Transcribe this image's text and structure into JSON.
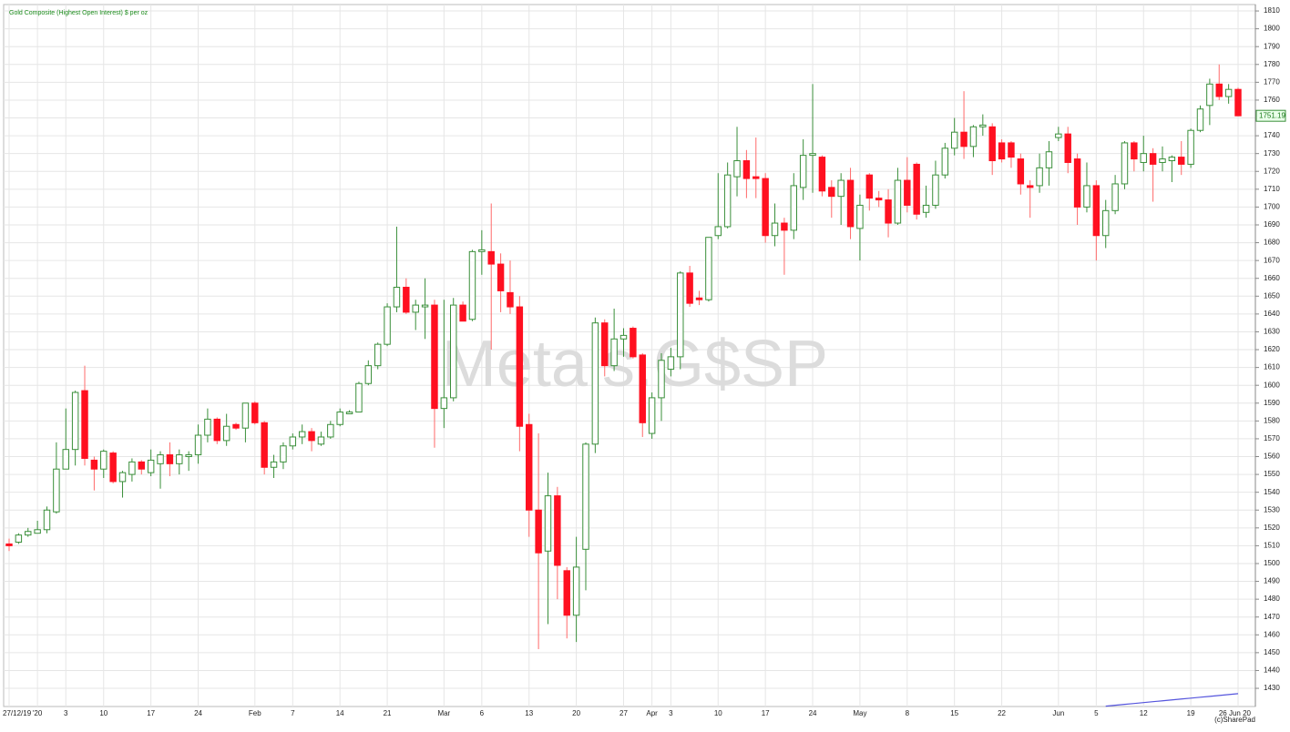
{
  "chart_data": {
    "type": "candlestick",
    "title": "Gold Composite (Highest Open Interest) $ per oz",
    "watermark": "Metals.G$SP",
    "credit": "(c)SharePad",
    "up_color": "#3a8f3a",
    "down_color": "#ff1020",
    "grid": true,
    "ylim": [
      1419.8,
      1813.6
    ],
    "yticks": [
      1430,
      1440,
      1450,
      1460,
      1470,
      1480,
      1490,
      1500,
      1510,
      1520,
      1530,
      1540,
      1550,
      1560,
      1570,
      1580,
      1590,
      1600,
      1610,
      1620,
      1630,
      1640,
      1650,
      1660,
      1670,
      1680,
      1690,
      1700,
      1710,
      1720,
      1730,
      1740,
      1750,
      1760,
      1770,
      1780,
      1790,
      1800,
      1810
    ],
    "categories": [
      "27/12/19",
      null,
      null,
      "'20",
      null,
      null,
      "3",
      null,
      null,
      null,
      "10",
      null,
      null,
      null,
      null,
      "17",
      null,
      null,
      null,
      null,
      "24",
      null,
      null,
      null,
      null,
      null,
      "Feb",
      null,
      null,
      null,
      "7",
      null,
      null,
      null,
      null,
      "14",
      null,
      null,
      null,
      null,
      "21",
      null,
      null,
      null,
      null,
      null,
      "Mar",
      null,
      null,
      null,
      "6",
      null,
      null,
      null,
      null,
      "13",
      null,
      null,
      null,
      null,
      "20",
      null,
      null,
      null,
      null,
      "27",
      null,
      null,
      "Apr",
      null,
      "3",
      null,
      null,
      null,
      null,
      "10",
      null,
      null,
      null,
      null,
      "17",
      null,
      null,
      null,
      null,
      "24",
      null,
      null,
      null,
      null,
      "May",
      null,
      null,
      null,
      null,
      "8",
      null,
      null,
      null,
      null,
      "15",
      null,
      null,
      null,
      null,
      "22",
      null,
      null,
      null,
      null,
      null,
      "Jun",
      null,
      null,
      null,
      "5",
      null,
      null,
      null,
      null,
      "12",
      null,
      null,
      null,
      null,
      "19",
      null,
      null,
      null,
      null,
      "26 Jun 20"
    ],
    "open": [
      1511,
      1512,
      1516,
      1517,
      1519,
      1529,
      1553,
      1564,
      1597,
      1558,
      1553,
      1562,
      1546,
      1550,
      1557,
      1551,
      1556,
      1561,
      1556,
      1560,
      1561,
      1572,
      1581,
      1569,
      1578,
      1576,
      1590,
      1579,
      1554,
      1557,
      1566,
      1571,
      1574,
      1567,
      1571,
      1578,
      1584,
      1585,
      1601,
      1611,
      1623,
      1644,
      1655,
      1641,
      1644,
      1645,
      1587,
      1593,
      1645,
      1637,
      1675,
      1675,
      1668,
      1652,
      1644,
      1578,
      1530,
      1507,
      1538,
      1496,
      1471,
      1508,
      1567,
      1635,
      1611,
      1626,
      1632,
      1617,
      1573,
      1593,
      1609,
      1616,
      1663,
      1649,
      1648,
      1684,
      1689,
      1717,
      1726,
      1717,
      1716,
      1684,
      1691,
      1687,
      1711,
      1729,
      1728,
      1711,
      1706,
      1715,
      1688,
      1718,
      1705,
      1704,
      1691,
      1715,
      1724,
      1697,
      1701,
      1718,
      1733,
      1742,
      1734,
      1745,
      1745,
      1736,
      1736,
      1727,
      1712,
      1712,
      1722,
      1739,
      1741,
      1727,
      1700,
      1712,
      1684,
      1698,
      1713,
      1736,
      1725,
      1730,
      1725,
      1726,
      1728,
      1724,
      1743,
      1757,
      1769,
      1762,
      1766
    ],
    "high": [
      1514,
      1517,
      1520,
      1524,
      1532,
      1568,
      1587,
      1597,
      1611,
      1560,
      1564,
      1563,
      1552,
      1559,
      1558,
      1564,
      1563,
      1568,
      1564,
      1563,
      1578,
      1587,
      1582,
      1584,
      1579,
      1590,
      1591,
      1580,
      1561,
      1568,
      1573,
      1578,
      1576,
      1574,
      1580,
      1587,
      1586,
      1602,
      1614,
      1624,
      1646,
      1689,
      1660,
      1648,
      1660,
      1648,
      1648,
      1649,
      1647,
      1676,
      1687,
      1702,
      1674,
      1670,
      1650,
      1584,
      1573,
      1551,
      1543,
      1498,
      1515,
      1568,
      1638,
      1637,
      1643,
      1632,
      1633,
      1618,
      1596,
      1618,
      1621,
      1664,
      1667,
      1653,
      1683,
      1719,
      1725,
      1745,
      1732,
      1739,
      1719,
      1702,
      1694,
      1719,
      1738,
      1769,
      1729,
      1715,
      1719,
      1722,
      1707,
      1719,
      1709,
      1710,
      1722,
      1728,
      1725,
      1712,
      1726,
      1736,
      1750,
      1765,
      1746,
      1752,
      1747,
      1738,
      1737,
      1730,
      1715,
      1730,
      1737,
      1745,
      1745,
      1730,
      1725,
      1715,
      1704,
      1718,
      1737,
      1737,
      1740,
      1733,
      1734,
      1729,
      1737,
      1744,
      1757,
      1772,
      1780,
      1769,
      1767
    ],
    "low": [
      1507,
      1511,
      1515,
      1517,
      1517,
      1528,
      1553,
      1555,
      1555,
      1541,
      1548,
      1545,
      1537,
      1546,
      1550,
      1549,
      1542,
      1549,
      1550,
      1552,
      1556,
      1568,
      1567,
      1566,
      1575,
      1568,
      1578,
      1550,
      1548,
      1553,
      1564,
      1567,
      1563,
      1566,
      1570,
      1577,
      1584,
      1585,
      1600,
      1609,
      1622,
      1641,
      1640,
      1631,
      1626,
      1565,
      1576,
      1591,
      1636,
      1636,
      1662,
      1620,
      1641,
      1640,
      1563,
      1515,
      1452,
      1466,
      1480,
      1458,
      1456,
      1485,
      1562,
      1605,
      1608,
      1616,
      1615,
      1571,
      1570,
      1580,
      1605,
      1609,
      1644,
      1645,
      1647,
      1682,
      1688,
      1706,
      1705,
      1705,
      1680,
      1678,
      1662,
      1682,
      1704,
      1708,
      1706,
      1694,
      1690,
      1682,
      1670,
      1698,
      1700,
      1683,
      1690,
      1697,
      1693,
      1694,
      1699,
      1716,
      1729,
      1727,
      1728,
      1740,
      1718,
      1725,
      1722,
      1707,
      1694,
      1708,
      1712,
      1737,
      1719,
      1690,
      1697,
      1670,
      1677,
      1696,
      1710,
      1720,
      1720,
      1703,
      1720,
      1714,
      1718,
      1722,
      1742,
      1746,
      1760,
      1758,
      1751
    ],
    "close": [
      1510,
      1516,
      1518,
      1519,
      1530,
      1553,
      1564,
      1596,
      1559,
      1553,
      1563,
      1546,
      1551,
      1557,
      1553,
      1558,
      1561,
      1556,
      1561,
      1561,
      1572,
      1581,
      1569,
      1577,
      1576,
      1590,
      1579,
      1554,
      1557,
      1566,
      1571,
      1574,
      1569,
      1571,
      1578,
      1585,
      1585,
      1601,
      1611,
      1623,
      1644,
      1655,
      1641,
      1645,
      1645,
      1587,
      1593,
      1645,
      1636,
      1675,
      1676,
      1668,
      1653,
      1644,
      1577,
      1530,
      1506,
      1538,
      1499,
      1471,
      1498,
      1567,
      1635,
      1611,
      1626,
      1628,
      1616,
      1579,
      1593,
      1614,
      1616,
      1663,
      1646,
      1648,
      1683,
      1689,
      1718,
      1726,
      1716,
      1716,
      1684,
      1691,
      1687,
      1712,
      1729,
      1730,
      1709,
      1706,
      1715,
      1689,
      1701,
      1705,
      1704,
      1691,
      1715,
      1701,
      1696,
      1701,
      1718,
      1733,
      1742,
      1734,
      1745,
      1746,
      1726,
      1727,
      1728,
      1713,
      1711,
      1722,
      1731,
      1741,
      1725,
      1700,
      1712,
      1684,
      1698,
      1713,
      1736,
      1727,
      1730,
      1724,
      1727,
      1728,
      1724,
      1743,
      1755,
      1769,
      1762,
      1766,
      1751.19
    ],
    "overlay": {
      "color": "#5555dd",
      "values": [
        null,
        null,
        null,
        null,
        null,
        null,
        null,
        null,
        null,
        null,
        null,
        null,
        null,
        null,
        null,
        null,
        null,
        null,
        null,
        null,
        null,
        null,
        null,
        null,
        null,
        null,
        null,
        null,
        null,
        null,
        null,
        null,
        null,
        null,
        null,
        null,
        null,
        null,
        null,
        null,
        null,
        null,
        null,
        null,
        null,
        null,
        null,
        null,
        null,
        null,
        null,
        null,
        null,
        null,
        null,
        null,
        null,
        null,
        null,
        null,
        null,
        null,
        null,
        null,
        null,
        null,
        null,
        null,
        null,
        null,
        null,
        null,
        null,
        null,
        null,
        null,
        null,
        null,
        null,
        null,
        null,
        null,
        null,
        null,
        null,
        null,
        null,
        null,
        null,
        null,
        null,
        null,
        null,
        null,
        null,
        null,
        null,
        null,
        null,
        null,
        null,
        null,
        null,
        null,
        null,
        null,
        null,
        null,
        null,
        null,
        null,
        null,
        null,
        null,
        null,
        null,
        1420,
        1420.5,
        1421,
        1421.5,
        1422,
        1422.5,
        1423,
        1423.5,
        1424,
        1424.5,
        1425,
        1425.5,
        1426,
        1426.5,
        1427
      ]
    }
  }
}
